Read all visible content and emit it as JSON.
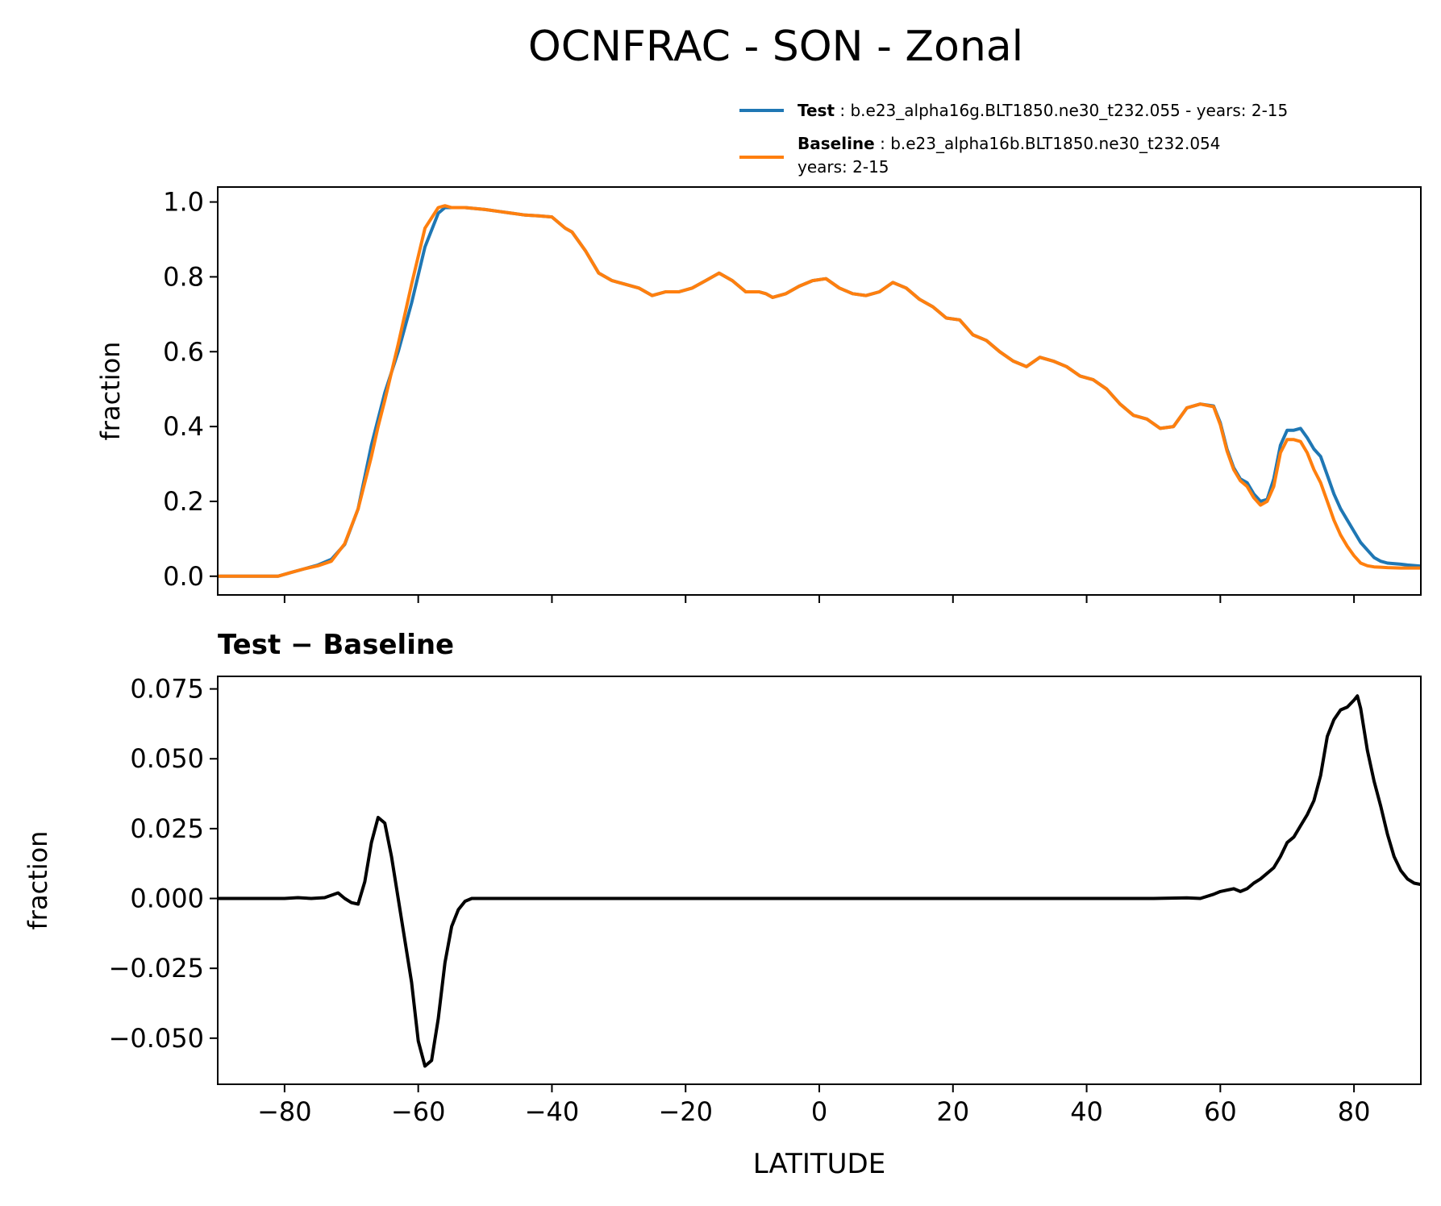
{
  "title": "OCNFRAC - SON - Zonal",
  "colors": {
    "test": "#1f77b4",
    "baseline": "#ff7f0e",
    "diff": "#000000",
    "axis": "#000000"
  },
  "legend": {
    "placement": "above-top-right",
    "test": {
      "bold": "Test",
      "text": " : b.e23_alpha16g.BLT1850.ne30_t232.055 - years: 2-15"
    },
    "baseline": {
      "bold": "Baseline",
      "text": " : b.e23_alpha16b.BLT1850.ne30_t232.054",
      "line2": "years: 2-15"
    }
  },
  "chart_data": [
    {
      "type": "line",
      "name": "top",
      "ylabel": "fraction",
      "xlim": [
        -90,
        90
      ],
      "ylim": [
        -0.05,
        1.04
      ],
      "yticks": [
        0.0,
        0.2,
        0.4,
        0.6,
        0.8,
        1.0
      ],
      "ytick_labels": [
        "0.0",
        "0.2",
        "0.4",
        "0.6",
        "0.8",
        "1.0"
      ],
      "xticks": [
        -80,
        -60,
        -40,
        -20,
        0,
        20,
        40,
        60,
        80
      ],
      "series": [
        {
          "name": "Test",
          "color": "#1f77b4",
          "x": [
            -90,
            -84,
            -81,
            -79,
            -77,
            -75,
            -73,
            -71,
            -69,
            -67,
            -66,
            -65,
            -63,
            -61,
            -59,
            -57,
            -56,
            -55,
            -53,
            -50,
            -48,
            -46,
            -44,
            -42,
            -40,
            -38,
            -37,
            -35,
            -33,
            -31,
            -29,
            -27,
            -25,
            -23,
            -21,
            -19,
            -17,
            -15,
            -13,
            -11,
            -9,
            -8,
            -7,
            -5,
            -3,
            -1,
            1,
            3,
            5,
            7,
            9,
            11,
            13,
            15,
            17,
            19,
            21,
            23,
            25,
            27,
            29,
            31,
            33,
            35,
            37,
            39,
            41,
            43,
            45,
            47,
            49,
            51,
            53,
            55,
            57,
            59,
            60,
            61,
            62,
            63,
            64,
            65,
            66,
            67,
            68,
            69,
            70,
            71,
            72,
            73,
            74,
            75,
            76,
            77,
            78,
            79,
            80,
            81,
            82,
            83,
            84,
            85,
            87,
            88,
            90
          ],
          "y": [
            0.0,
            0.0,
            0.0,
            0.01,
            0.02,
            0.03,
            0.045,
            0.085,
            0.18,
            0.35,
            0.42,
            0.49,
            0.6,
            0.73,
            0.88,
            0.97,
            0.985,
            0.985,
            0.985,
            0.98,
            0.975,
            0.97,
            0.965,
            0.963,
            0.96,
            0.93,
            0.92,
            0.87,
            0.81,
            0.79,
            0.78,
            0.77,
            0.75,
            0.76,
            0.76,
            0.77,
            0.79,
            0.81,
            0.79,
            0.76,
            0.76,
            0.755,
            0.745,
            0.755,
            0.775,
            0.79,
            0.795,
            0.77,
            0.755,
            0.75,
            0.76,
            0.785,
            0.77,
            0.74,
            0.72,
            0.69,
            0.685,
            0.645,
            0.63,
            0.6,
            0.575,
            0.56,
            0.585,
            0.575,
            0.56,
            0.535,
            0.525,
            0.5,
            0.46,
            0.43,
            0.42,
            0.395,
            0.4,
            0.45,
            0.46,
            0.455,
            0.41,
            0.34,
            0.29,
            0.26,
            0.25,
            0.22,
            0.2,
            0.205,
            0.26,
            0.35,
            0.39,
            0.39,
            0.395,
            0.37,
            0.34,
            0.32,
            0.27,
            0.22,
            0.18,
            0.15,
            0.12,
            0.09,
            0.07,
            0.05,
            0.04,
            0.035,
            0.032,
            0.03,
            0.027
          ]
        },
        {
          "name": "Baseline",
          "color": "#ff7f0e",
          "x": [
            -90,
            -84,
            -81,
            -79,
            -77,
            -75,
            -73,
            -71,
            -69,
            -67,
            -66,
            -65,
            -63,
            -61,
            -59,
            -57,
            -56,
            -55,
            -53,
            -50,
            -48,
            -46,
            -44,
            -42,
            -40,
            -38,
            -37,
            -35,
            -33,
            -31,
            -29,
            -27,
            -25,
            -23,
            -21,
            -19,
            -17,
            -15,
            -13,
            -11,
            -9,
            -8,
            -7,
            -5,
            -3,
            -1,
            1,
            3,
            5,
            7,
            9,
            11,
            13,
            15,
            17,
            19,
            21,
            23,
            25,
            27,
            29,
            31,
            33,
            35,
            37,
            39,
            41,
            43,
            45,
            47,
            49,
            51,
            53,
            55,
            57,
            59,
            60,
            61,
            62,
            63,
            64,
            65,
            66,
            67,
            68,
            69,
            70,
            71,
            72,
            73,
            74,
            75,
            76,
            77,
            78,
            79,
            80,
            81,
            82,
            83,
            84,
            85,
            87,
            88,
            90
          ],
          "y": [
            0.0,
            0.0,
            0.0,
            0.01,
            0.02,
            0.028,
            0.04,
            0.087,
            0.18,
            0.32,
            0.4,
            0.47,
            0.62,
            0.78,
            0.93,
            0.985,
            0.99,
            0.985,
            0.985,
            0.98,
            0.975,
            0.97,
            0.965,
            0.963,
            0.96,
            0.93,
            0.92,
            0.87,
            0.81,
            0.79,
            0.78,
            0.77,
            0.75,
            0.76,
            0.76,
            0.77,
            0.79,
            0.81,
            0.79,
            0.76,
            0.76,
            0.755,
            0.745,
            0.755,
            0.775,
            0.79,
            0.795,
            0.77,
            0.755,
            0.75,
            0.76,
            0.785,
            0.77,
            0.74,
            0.72,
            0.69,
            0.685,
            0.645,
            0.63,
            0.6,
            0.575,
            0.56,
            0.585,
            0.575,
            0.56,
            0.535,
            0.525,
            0.5,
            0.46,
            0.43,
            0.42,
            0.395,
            0.4,
            0.45,
            0.46,
            0.453,
            0.405,
            0.335,
            0.285,
            0.255,
            0.24,
            0.21,
            0.19,
            0.2,
            0.24,
            0.33,
            0.365,
            0.365,
            0.36,
            0.33,
            0.285,
            0.25,
            0.2,
            0.15,
            0.11,
            0.08,
            0.055,
            0.035,
            0.028,
            0.025,
            0.024,
            0.023,
            0.022,
            0.022,
            0.022
          ]
        }
      ]
    },
    {
      "type": "line",
      "name": "bottom",
      "title": "Test − Baseline",
      "ylabel": "fraction",
      "xlabel": "LATITUDE",
      "xlim": [
        -90,
        90
      ],
      "ylim": [
        -0.0665,
        0.0795
      ],
      "yticks": [
        -0.05,
        -0.025,
        0.0,
        0.025,
        0.05,
        0.075
      ],
      "ytick_labels": [
        "−0.050",
        "−0.025",
        "0.000",
        "0.025",
        "0.050",
        "0.075"
      ],
      "xticks": [
        -80,
        -60,
        -40,
        -20,
        0,
        20,
        40,
        60,
        80
      ],
      "xtick_labels": [
        "−80",
        "−60",
        "−40",
        "−20",
        "0",
        "20",
        "40",
        "60",
        "80"
      ],
      "series": [
        {
          "name": "Test - Baseline",
          "color": "#000000",
          "x": [
            -90,
            -80,
            -78,
            -76,
            -74,
            -72,
            -71,
            -70,
            -69,
            -68,
            -67,
            -66,
            -65,
            -64,
            -63,
            -62,
            -61,
            -60,
            -59,
            -58,
            -57,
            -56,
            -55,
            -54,
            -53,
            -52,
            -50,
            -40,
            -20,
            0,
            20,
            40,
            50,
            55,
            57,
            59,
            60,
            62,
            63,
            64,
            65,
            66,
            67,
            68,
            69,
            70,
            71,
            72,
            73,
            74,
            75,
            76,
            77,
            78,
            79,
            80,
            80.5,
            81,
            82,
            83,
            84,
            85,
            86,
            87,
            88,
            89,
            90
          ],
          "y": [
            0.0,
            0.0,
            0.0003,
            0.0,
            0.0003,
            0.002,
            0.0,
            -0.0015,
            -0.002,
            0.006,
            0.02,
            0.029,
            0.027,
            0.015,
            0.0,
            -0.015,
            -0.03,
            -0.051,
            -0.06,
            -0.058,
            -0.043,
            -0.023,
            -0.01,
            -0.004,
            -0.001,
            0.0,
            0.0,
            0.0,
            0.0,
            0.0,
            0.0,
            0.0,
            0.0,
            0.0002,
            0.0,
            0.0015,
            0.0025,
            0.0035,
            0.0025,
            0.0035,
            0.0055,
            0.007,
            0.009,
            0.011,
            0.015,
            0.02,
            0.022,
            0.026,
            0.03,
            0.035,
            0.044,
            0.058,
            0.064,
            0.0675,
            0.0685,
            0.071,
            0.0725,
            0.068,
            0.053,
            0.042,
            0.033,
            0.023,
            0.015,
            0.01,
            0.007,
            0.0055,
            0.005
          ]
        }
      ]
    }
  ]
}
